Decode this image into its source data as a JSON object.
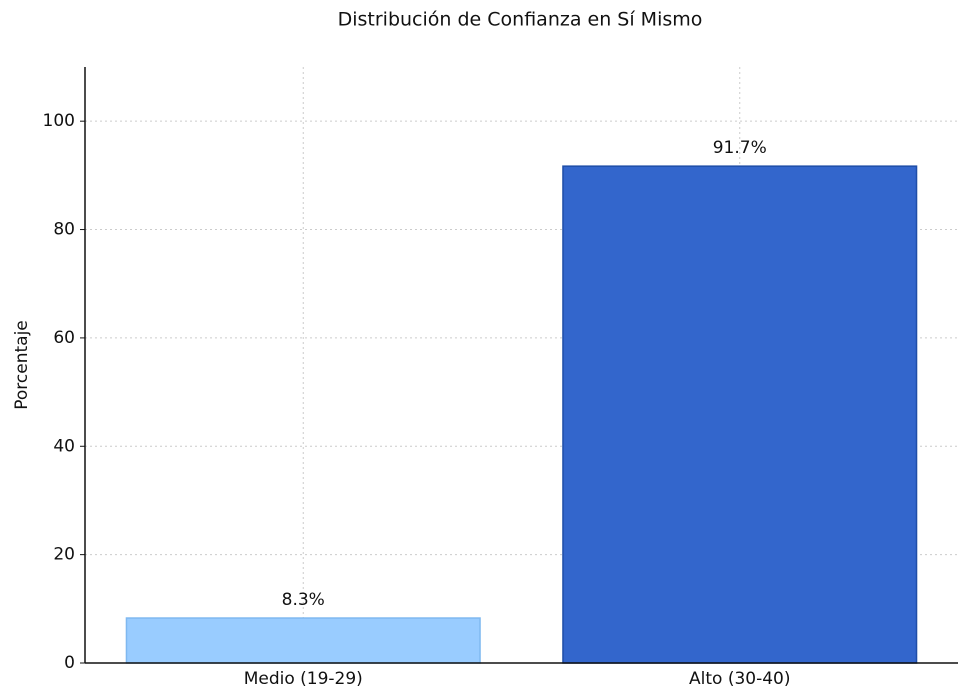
{
  "chart_data": {
    "type": "bar",
    "title": "Distribución de Confianza en Sí Mismo",
    "y_label": "Porcentaje",
    "categories": [
      "Medio (19-29)",
      "Alto (30-40)"
    ],
    "values": [
      8.3,
      91.7
    ],
    "value_labels": [
      "8.3%",
      "91.7%"
    ],
    "colors": [
      "#99ccff",
      "#3366cc"
    ],
    "ylim": [
      0,
      110
    ],
    "yticks": [
      0,
      20,
      40,
      60,
      80,
      100
    ],
    "grid": true
  }
}
